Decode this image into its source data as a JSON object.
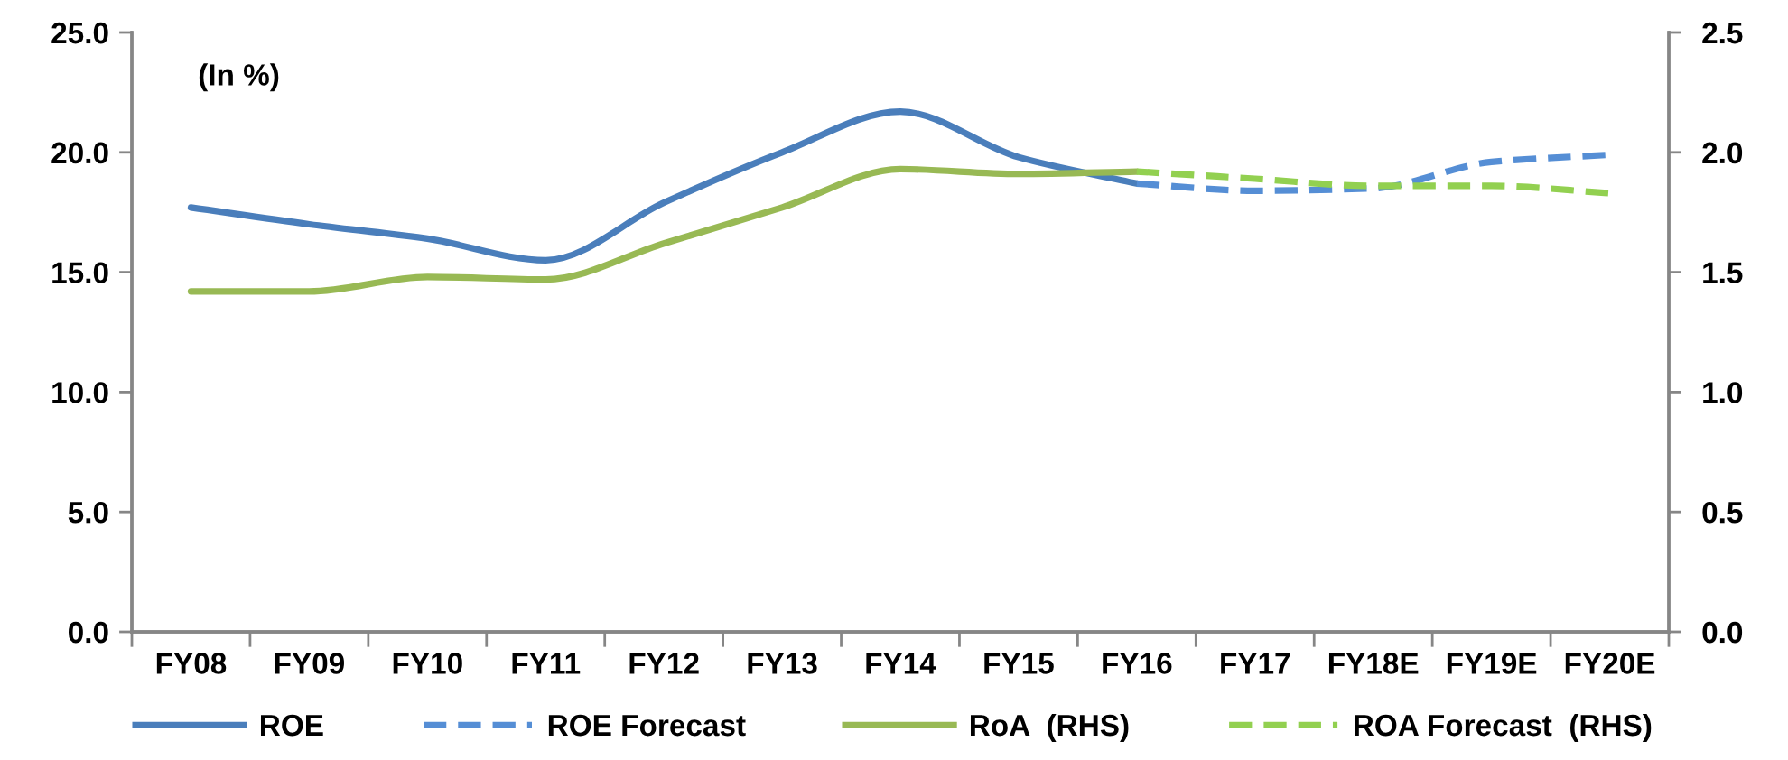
{
  "chart_data": {
    "type": "line",
    "annotations": [
      "(In %)"
    ],
    "categories": [
      "FY08",
      "FY09",
      "FY10",
      "FY11",
      "FY12",
      "FY13",
      "FY14",
      "FY15",
      "FY16",
      "FY17",
      "FY18E",
      "FY19E",
      "FY20E"
    ],
    "series": [
      {
        "name": "ROE",
        "color": "#4a7ebb",
        "line_style": "solid",
        "values": [
          17.7,
          17.0,
          16.4,
          15.5,
          17.9,
          20.0,
          21.7,
          19.8,
          18.7,
          null,
          null,
          null,
          null
        ]
      },
      {
        "name": "ROE Forecast",
        "color": "#558ed5",
        "line_style": "dashed",
        "values": [
          null,
          null,
          null,
          null,
          null,
          null,
          null,
          null,
          18.7,
          18.4,
          18.5,
          19.6,
          19.9
        ]
      },
      {
        "name": "RoA  (RHS)",
        "color": "#98b954",
        "line_style": "solid",
        "axis": "y2",
        "values": [
          1.42,
          1.42,
          1.48,
          1.47,
          1.62,
          1.77,
          1.93,
          1.91,
          1.92,
          null,
          null,
          null,
          null
        ]
      },
      {
        "name": "ROA Forecast  (RHS)",
        "color": "#92d050",
        "line_style": "dashed",
        "axis": "y2",
        "values": [
          null,
          null,
          null,
          null,
          null,
          null,
          null,
          null,
          1.92,
          1.89,
          1.86,
          1.86,
          1.83
        ]
      }
    ],
    "ylim": [
      0,
      25
    ],
    "yticks": [
      {
        "value": 0,
        "label": "0.0"
      },
      {
        "value": 5,
        "label": "5.0"
      },
      {
        "value": 10,
        "label": "10.0"
      },
      {
        "value": 15,
        "label": "15.0"
      },
      {
        "value": 20,
        "label": "20.0"
      },
      {
        "value": 25,
        "label": "25.0"
      }
    ],
    "y2lim": [
      0,
      2.5
    ],
    "y2ticks": [
      {
        "value": 0,
        "label": "0.0"
      },
      {
        "value": 0.5,
        "label": "0.5"
      },
      {
        "value": 1,
        "label": "1.0"
      },
      {
        "value": 1.5,
        "label": "1.5"
      },
      {
        "value": 2,
        "label": "2.0"
      },
      {
        "value": 2.5,
        "label": "2.5"
      }
    ],
    "grid": false,
    "legend": "bottom"
  }
}
